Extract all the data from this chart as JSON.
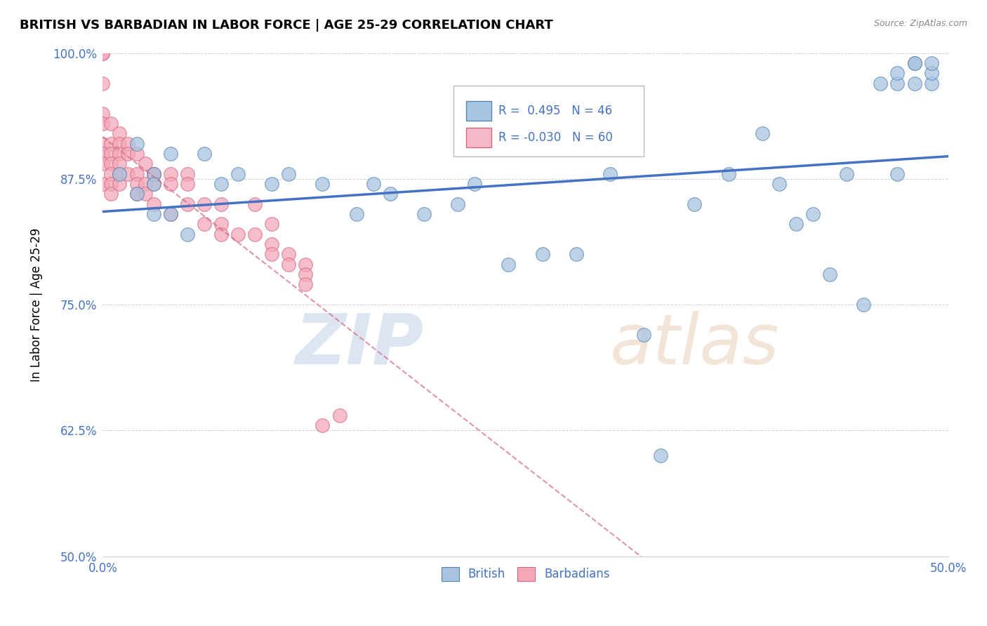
{
  "title": "BRITISH VS BARBADIAN IN LABOR FORCE | AGE 25-29 CORRELATION CHART",
  "source_text": "Source: ZipAtlas.com",
  "ylabel": "In Labor Force | Age 25-29",
  "xlim": [
    0.0,
    0.5
  ],
  "ylim": [
    0.5,
    1.0
  ],
  "yticks": [
    0.5,
    0.625,
    0.75,
    0.875,
    1.0
  ],
  "yticklabels": [
    "50.0%",
    "62.5%",
    "75.0%",
    "87.5%",
    "100.0%"
  ],
  "british_R": 0.495,
  "british_N": 46,
  "barbadian_R": -0.03,
  "barbadian_N": 60,
  "blue_color": "#a8c4e0",
  "blue_edge_color": "#5585b5",
  "blue_line_color": "#4472c4",
  "pink_color": "#f4a7b9",
  "pink_edge_color": "#d46880",
  "pink_line_color": "#d46880",
  "legend_box_blue": "#a8c4e0",
  "legend_box_pink": "#f4b8c8",
  "british_x": [
    0.01,
    0.02,
    0.02,
    0.03,
    0.03,
    0.03,
    0.04,
    0.04,
    0.05,
    0.06,
    0.07,
    0.08,
    0.1,
    0.11,
    0.13,
    0.15,
    0.16,
    0.17,
    0.19,
    0.21,
    0.22,
    0.24,
    0.26,
    0.28,
    0.3,
    0.32,
    0.33,
    0.35,
    0.37,
    0.39,
    0.4,
    0.41,
    0.42,
    0.43,
    0.44,
    0.45,
    0.46,
    0.47,
    0.47,
    0.47,
    0.48,
    0.48,
    0.48,
    0.49,
    0.49,
    0.49
  ],
  "british_y": [
    0.88,
    0.86,
    0.91,
    0.88,
    0.87,
    0.84,
    0.9,
    0.84,
    0.82,
    0.9,
    0.87,
    0.88,
    0.87,
    0.88,
    0.87,
    0.84,
    0.87,
    0.86,
    0.84,
    0.85,
    0.87,
    0.79,
    0.8,
    0.8,
    0.88,
    0.72,
    0.6,
    0.85,
    0.88,
    0.92,
    0.87,
    0.83,
    0.84,
    0.78,
    0.88,
    0.75,
    0.97,
    0.97,
    0.98,
    0.88,
    0.99,
    0.97,
    0.99,
    0.97,
    0.98,
    0.99
  ],
  "barbadian_x": [
    0.0,
    0.0,
    0.0,
    0.0,
    0.0,
    0.0,
    0.0,
    0.0,
    0.0,
    0.005,
    0.005,
    0.005,
    0.005,
    0.005,
    0.005,
    0.005,
    0.01,
    0.01,
    0.01,
    0.01,
    0.01,
    0.01,
    0.015,
    0.015,
    0.015,
    0.02,
    0.02,
    0.02,
    0.02,
    0.025,
    0.025,
    0.025,
    0.03,
    0.03,
    0.03,
    0.03,
    0.04,
    0.04,
    0.04,
    0.05,
    0.05,
    0.05,
    0.06,
    0.06,
    0.07,
    0.07,
    0.07,
    0.08,
    0.09,
    0.09,
    0.1,
    0.1,
    0.1,
    0.11,
    0.11,
    0.12,
    0.12,
    0.12,
    0.13,
    0.14
  ],
  "barbadian_y": [
    1.0,
    1.0,
    0.97,
    0.94,
    0.93,
    0.91,
    0.9,
    0.89,
    0.87,
    0.93,
    0.91,
    0.9,
    0.89,
    0.88,
    0.87,
    0.86,
    0.92,
    0.91,
    0.9,
    0.89,
    0.88,
    0.87,
    0.91,
    0.9,
    0.88,
    0.9,
    0.88,
    0.87,
    0.86,
    0.89,
    0.87,
    0.86,
    0.88,
    0.88,
    0.87,
    0.85,
    0.88,
    0.87,
    0.84,
    0.88,
    0.87,
    0.85,
    0.85,
    0.83,
    0.85,
    0.83,
    0.82,
    0.82,
    0.85,
    0.82,
    0.83,
    0.81,
    0.8,
    0.8,
    0.79,
    0.79,
    0.78,
    0.77,
    0.63,
    0.64
  ]
}
